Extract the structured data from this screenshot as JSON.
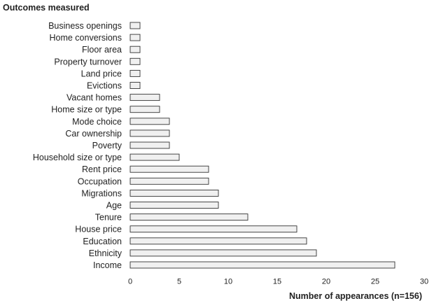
{
  "chart_data": {
    "type": "bar",
    "orientation": "horizontal",
    "title": "",
    "ylabel": "Outcomes measured",
    "xlabel": "Number of appearances (n=156)",
    "categories": [
      "Business openings",
      "Home conversions",
      "Floor area",
      "Property turnover",
      "Land price",
      "Evictions",
      "Vacant homes",
      "Home size or type",
      "Mode choice",
      "Car ownership",
      "Poverty",
      "Household size or type",
      "Rent price",
      "Occupation",
      "Migrations",
      "Age",
      "Tenure",
      "House price",
      "Education",
      "Ethnicity",
      "Income"
    ],
    "values": [
      1,
      1,
      1,
      1,
      1,
      1,
      3,
      3,
      4,
      4,
      4,
      5,
      8,
      8,
      9,
      9,
      12,
      17,
      18,
      19,
      27
    ],
    "xlim": [
      0,
      30
    ],
    "xticks": [
      "0",
      "5",
      "10",
      "15",
      "20",
      "25",
      "30"
    ],
    "grid": false,
    "legend": "none",
    "colors": {
      "bar_fill": "#f0f0f0",
      "bar_stroke": "#333333"
    }
  }
}
